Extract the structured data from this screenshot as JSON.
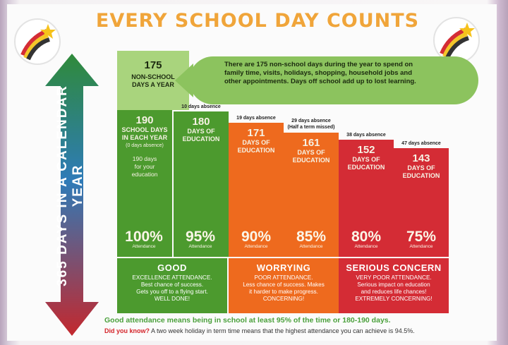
{
  "title": "EVERY SCHOOL DAY COUNTS",
  "side_label": "365 DAYS IN A CALENDAR YEAR",
  "non_school": {
    "number": "175",
    "label_line1": "NON-SCHOOL",
    "label_line2": "DAYS A YEAR",
    "bubble_line1": "There are 175 non-school days during the year to spend on",
    "bubble_line2": "family time, visits, holidays, shopping, household jobs and",
    "bubble_line3": "other appointments. Days off school add up to lost learning."
  },
  "columns": [
    {
      "header": "",
      "number": "190",
      "label_line1": "SCHOOL DAYS",
      "label_line2": "IN EACH YEAR",
      "note": "(0 days absence)",
      "note2_line1": "190 days",
      "note2_line2": "for your",
      "note2_line3": "education",
      "percent": "100%",
      "percent_label": "Attendance",
      "color": "#4c9a2e"
    },
    {
      "header": "10 days absence",
      "number": "180",
      "label_line1": "DAYS OF",
      "label_line2": "EDUCATION",
      "percent": "95%",
      "percent_label": "Attendance",
      "color": "#4c9a2e"
    },
    {
      "header": "19 days absence",
      "number": "171",
      "label_line1": "DAYS OF",
      "label_line2": "EDUCATION",
      "percent": "90%",
      "percent_label": "Attendance",
      "color": "#ee6a1e"
    },
    {
      "header": "29 days absence",
      "header2": "(Half a term missed)",
      "number": "161",
      "label_line1": "DAYS OF",
      "label_line2": "EDUCATION",
      "percent": "85%",
      "percent_label": "Attendance",
      "color": "#ee6a1e"
    },
    {
      "header": "38 days absence",
      "number": "152",
      "label_line1": "DAYS OF",
      "label_line2": "EDUCATION",
      "percent": "80%",
      "percent_label": "Attendance",
      "color": "#d42c35"
    },
    {
      "header": "47 days absence",
      "number": "143",
      "label_line1": "DAYS OF",
      "label_line2": "EDUCATION",
      "percent": "75%",
      "percent_label": "Attendance",
      "color": "#d42c35"
    }
  ],
  "bands": [
    {
      "title": "GOOD",
      "line1": "EXCELLENCE ATTENDANCE.",
      "line2": "Best chance of success.",
      "line3": "Gets you off to a flying start.",
      "line4": "WELL DONE!",
      "color": "#4c9a2e"
    },
    {
      "title": "WORRYING",
      "line1": "POOR ATTENDANCE.",
      "line2": "Less chance of success. Makes",
      "line3": "it harder to make progress.",
      "line4": "CONCERNING!",
      "color": "#ee6a1e"
    },
    {
      "title": "SERIOUS CONCERN",
      "line1": "VERY POOR ATTENDANCE.",
      "line2": "Serious impact on education",
      "line3": "and reduces life chances!",
      "line4": "EXTREMELY CONCERNING!",
      "color": "#d42c35"
    }
  ],
  "footer": {
    "line1": "Good attendance means being in school at least 95% of the time or 180-190 days.",
    "did_you_know": "Did you know?",
    "line2": "A two week holiday in term time means that the highest attendance you can achieve is 94.5%."
  },
  "logo_icon": "shooting-star-icon"
}
